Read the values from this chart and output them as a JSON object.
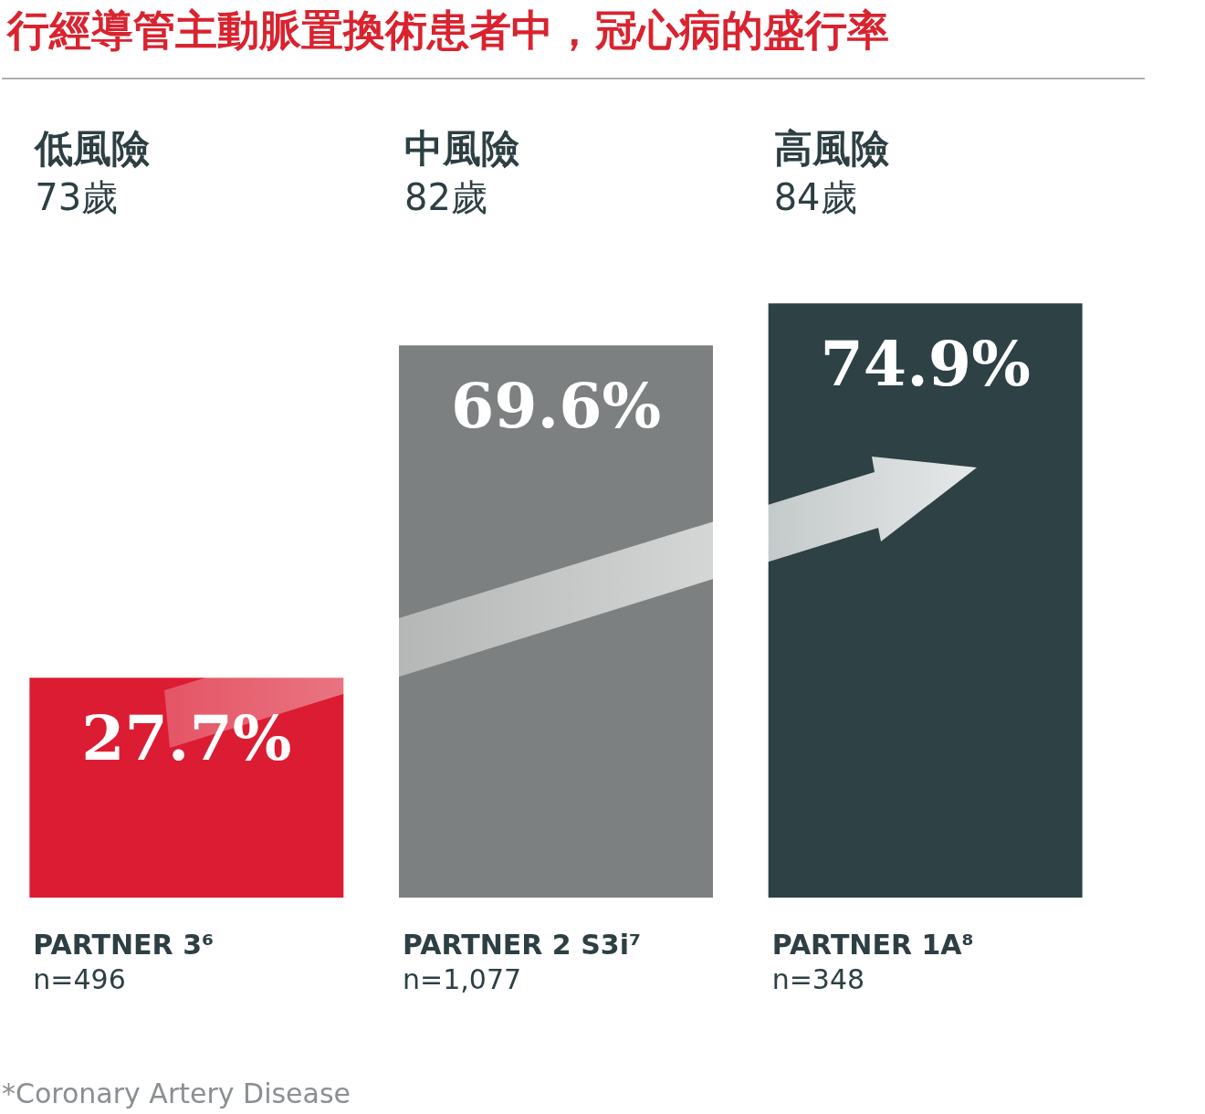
{
  "chart_data": {
    "type": "bar",
    "title": "行經導管主動脈置換術患者中，冠心病的盛行率",
    "categories": [
      "PARTNER 3⁶\nn=496",
      "PARTNER 2 S3i⁷\nn=1,077",
      "PARTNER 1A⁸\nn=348"
    ],
    "values": [
      27.7,
      69.6,
      74.9
    ],
    "value_labels": [
      "27.7%",
      "69.6%",
      "74.9%"
    ],
    "colors": [
      "#dc1c32",
      "#7d8080",
      "#2e4145"
    ],
    "annotations": [
      "低風險\n73歲",
      "中風險\n82歲",
      "高風險\n84歲",
      "*Coronary Artery Disease"
    ],
    "legend": false
  }
}
